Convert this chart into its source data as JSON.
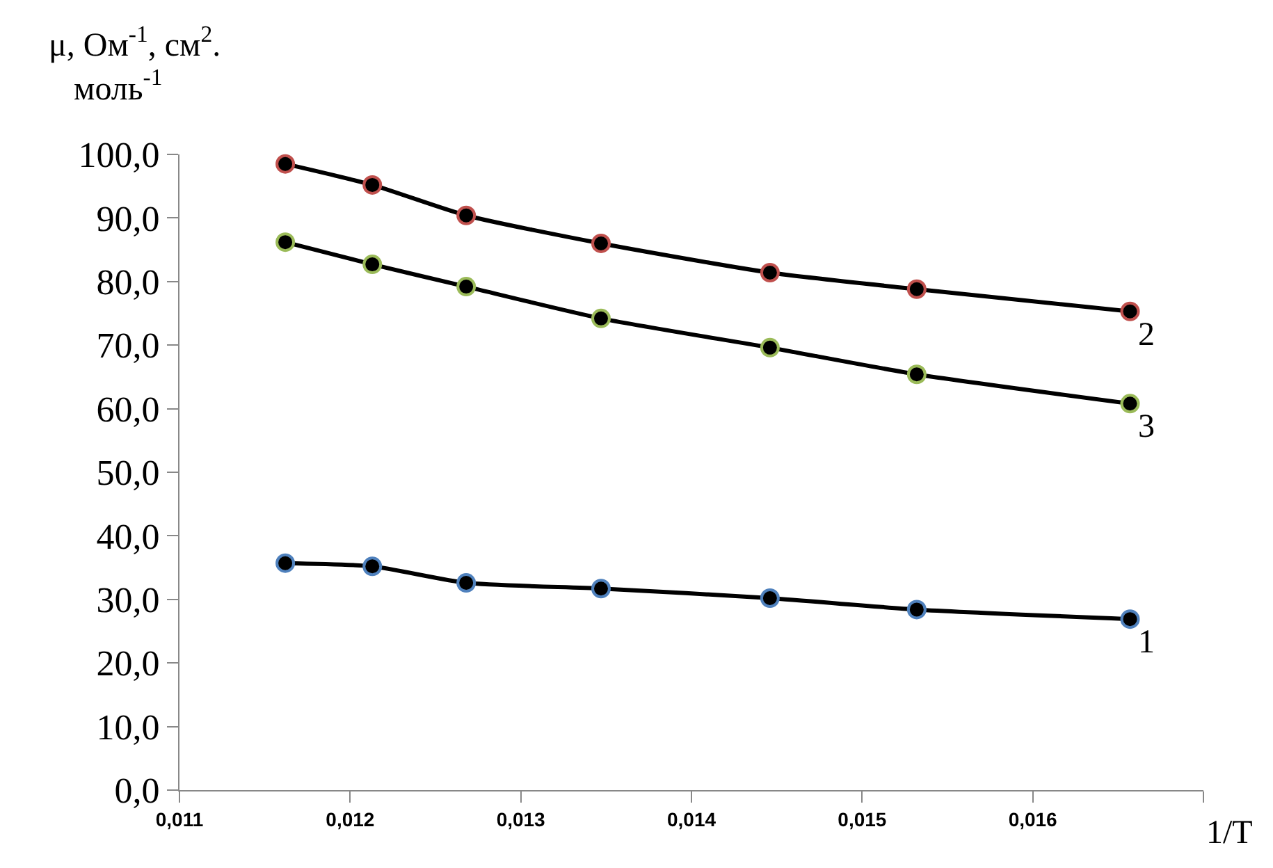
{
  "chart_data": {
    "type": "line",
    "ylabel": "μ, Ом$^{-1}$, см$^{2}$. моль$^{-1}$",
    "xlabel": "1/T",
    "x": [
      0.01162,
      0.01213,
      0.01268,
      0.01347,
      0.01446,
      0.01532,
      0.01657
    ],
    "series": [
      {
        "name": "1",
        "color": "#4f81bd",
        "values": [
          35.7,
          35.2,
          32.6,
          31.7,
          30.2,
          28.4,
          26.9
        ]
      },
      {
        "name": "2",
        "color": "#c0504d",
        "values": [
          98.5,
          95.2,
          90.4,
          86.0,
          81.4,
          78.8,
          75.3
        ]
      },
      {
        "name": "3",
        "color": "#9bbb59",
        "values": [
          86.2,
          82.7,
          79.2,
          74.2,
          69.6,
          65.4,
          60.8
        ]
      }
    ],
    "xlim": [
      0.011,
      0.017
    ],
    "xticks": [
      {
        "value": 0.011,
        "label": "0,011"
      },
      {
        "value": 0.012,
        "label": "0,012"
      },
      {
        "value": 0.013,
        "label": "0,013"
      },
      {
        "value": 0.014,
        "label": "0,014"
      },
      {
        "value": 0.015,
        "label": "0,015"
      },
      {
        "value": 0.016,
        "label": "0,016"
      },
      {
        "value": 0.017,
        "label": null
      }
    ],
    "ylim": [
      0,
      100
    ],
    "yticks": [
      {
        "value": 0,
        "label": "0,0"
      },
      {
        "value": 10,
        "label": "10,0"
      },
      {
        "value": 20,
        "label": "20,0"
      },
      {
        "value": 30,
        "label": "30,0"
      },
      {
        "value": 40,
        "label": "40,0"
      },
      {
        "value": 50,
        "label": "50,0"
      },
      {
        "value": 60,
        "label": "60,0"
      },
      {
        "value": 70,
        "label": "70,0"
      },
      {
        "value": 80,
        "label": "80,0"
      },
      {
        "value": 90,
        "label": "90,0"
      },
      {
        "value": 100,
        "label": "100,0"
      }
    ],
    "legend": false,
    "marker": "circle",
    "line_style": "solid"
  }
}
